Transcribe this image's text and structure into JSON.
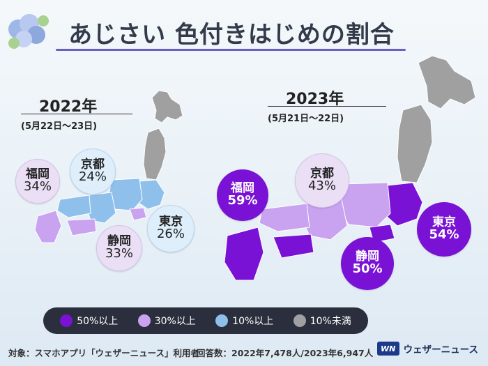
{
  "header": {
    "title": "あじさい 色付きはじめの割合"
  },
  "panels": [
    {
      "year_label": "2022年",
      "period_label": "(5月22日～23日)",
      "cities": [
        {
          "name": "福岡",
          "percent": "34%"
        },
        {
          "name": "京都",
          "percent": "24%"
        },
        {
          "name": "東京",
          "percent": "26%"
        },
        {
          "name": "静岡",
          "percent": "33%"
        }
      ]
    },
    {
      "year_label": "2023年",
      "period_label": "(5月21日～22日)",
      "cities": [
        {
          "name": "福岡",
          "percent": "59%"
        },
        {
          "name": "京都",
          "percent": "43%"
        },
        {
          "name": "東京",
          "percent": "54%"
        },
        {
          "name": "静岡",
          "percent": "50%"
        }
      ]
    }
  ],
  "legend": [
    {
      "label": "50%以上",
      "color": "#7a12d6"
    },
    {
      "label": "30%以上",
      "color": "#c9a3ef"
    },
    {
      "label": "10%以上",
      "color": "#8fc0ec"
    },
    {
      "label": "10%未満",
      "color": "#a0a0a0"
    }
  ],
  "footer": {
    "target": "対象：スマホアプリ「ウェザーニュース」利用者",
    "responses": "回答数：2022年7,478人/2023年6,947人",
    "brand_logo": "WN",
    "brand_name": "ウェザーニュース"
  }
}
